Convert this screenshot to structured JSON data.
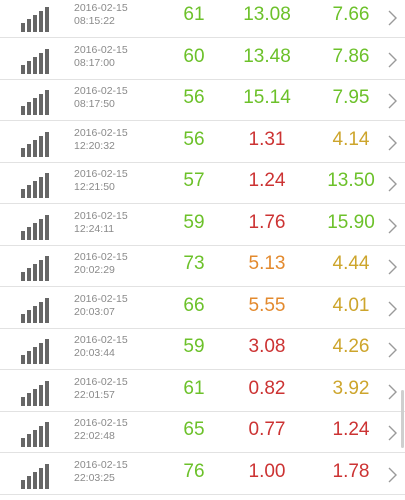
{
  "colors": {
    "green": "#6cc12a",
    "red": "#cc3333",
    "orange": "#e38a2e",
    "amber": "#cda52c",
    "signal": "#666666"
  },
  "row_icon": "signal-strength-icon",
  "row_action_icon": "chevron-right-icon",
  "records": [
    {
      "date": "2016-02-15",
      "time": "08:15:22",
      "v1": "61",
      "v1_color": "green",
      "v2": "13.08",
      "v2_color": "green",
      "v3": "7.66",
      "v3_color": "green"
    },
    {
      "date": "2016-02-15",
      "time": "08:17:00",
      "v1": "60",
      "v1_color": "green",
      "v2": "13.48",
      "v2_color": "green",
      "v3": "7.86",
      "v3_color": "green"
    },
    {
      "date": "2016-02-15",
      "time": "08:17:50",
      "v1": "56",
      "v1_color": "green",
      "v2": "15.14",
      "v2_color": "green",
      "v3": "7.95",
      "v3_color": "green"
    },
    {
      "date": "2016-02-15",
      "time": "12:20:32",
      "v1": "56",
      "v1_color": "green",
      "v2": "1.31",
      "v2_color": "red",
      "v3": "4.14",
      "v3_color": "amber"
    },
    {
      "date": "2016-02-15",
      "time": "12:21:50",
      "v1": "57",
      "v1_color": "green",
      "v2": "1.24",
      "v2_color": "red",
      "v3": "13.50",
      "v3_color": "green"
    },
    {
      "date": "2016-02-15",
      "time": "12:24:11",
      "v1": "59",
      "v1_color": "green",
      "v2": "1.76",
      "v2_color": "red",
      "v3": "15.90",
      "v3_color": "green"
    },
    {
      "date": "2016-02-15",
      "time": "20:02:29",
      "v1": "73",
      "v1_color": "green",
      "v2": "5.13",
      "v2_color": "orange",
      "v3": "4.44",
      "v3_color": "amber"
    },
    {
      "date": "2016-02-15",
      "time": "20:03:07",
      "v1": "66",
      "v1_color": "green",
      "v2": "5.55",
      "v2_color": "orange",
      "v3": "4.01",
      "v3_color": "amber"
    },
    {
      "date": "2016-02-15",
      "time": "20:03:44",
      "v1": "59",
      "v1_color": "green",
      "v2": "3.08",
      "v2_color": "red",
      "v3": "4.26",
      "v3_color": "amber"
    },
    {
      "date": "2016-02-15",
      "time": "22:01:57",
      "v1": "61",
      "v1_color": "green",
      "v2": "0.82",
      "v2_color": "red",
      "v3": "3.92",
      "v3_color": "amber"
    },
    {
      "date": "2016-02-15",
      "time": "22:02:48",
      "v1": "65",
      "v1_color": "green",
      "v2": "0.77",
      "v2_color": "red",
      "v3": "1.24",
      "v3_color": "red"
    },
    {
      "date": "2016-02-15",
      "time": "22:03:25",
      "v1": "76",
      "v1_color": "green",
      "v2": "1.00",
      "v2_color": "red",
      "v3": "1.78",
      "v3_color": "red"
    }
  ]
}
